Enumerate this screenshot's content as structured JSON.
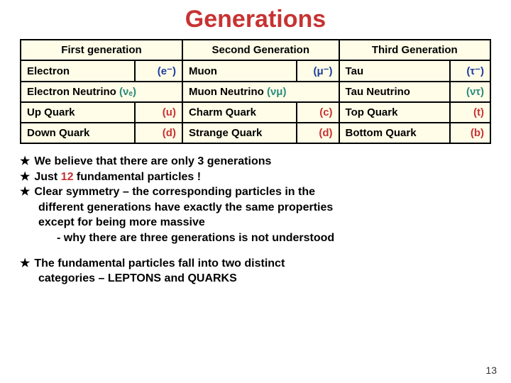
{
  "title": "Generations",
  "page_number": "13",
  "colors": {
    "title": "#c83232",
    "table_bg": "#fffde8",
    "border": "#000000",
    "red_symbol": "#c83232",
    "blue_symbol": "#1c3c9c",
    "teal_symbol": "#2a8a7a",
    "text": "#000000"
  },
  "table": {
    "headers": [
      "First generation",
      "Second Generation",
      "Third Generation"
    ],
    "rows": [
      {
        "c1": {
          "name": "Electron",
          "sym": "(e⁻)",
          "cls": "blue"
        },
        "c2": {
          "name": "Muon",
          "sym": "(μ⁻)",
          "cls": "blue"
        },
        "c3": {
          "name": "Tau",
          "sym": "(τ⁻)",
          "cls": "blue"
        }
      },
      {
        "c1": {
          "name": "Electron Neutrino",
          "sym": "(νₑ)",
          "cls": "teal"
        },
        "c2": {
          "name": "Muon Neutrino",
          "sym": "(νμ)",
          "cls": "teal"
        },
        "c3": {
          "name": "Tau Neutrino",
          "sym": "(ντ)",
          "cls": "teal"
        }
      },
      {
        "c1": {
          "name": "Up Quark",
          "sym": "(u)",
          "cls": "red"
        },
        "c2": {
          "name": "Charm Quark",
          "sym": "(c)",
          "cls": "red"
        },
        "c3": {
          "name": "Top Quark",
          "sym": "(t)",
          "cls": "red"
        }
      },
      {
        "c1": {
          "name": "Down Quark",
          "sym": "(d)",
          "cls": "red"
        },
        "c2": {
          "name": "Strange Quark",
          "sym": "(d)",
          "cls": "red"
        },
        "c3": {
          "name": "Bottom Quark",
          "sym": "(b)",
          "cls": "red"
        }
      }
    ]
  },
  "bullets": {
    "star": "★",
    "b1": "We believe that there are only 3 generations",
    "b2a": "Just ",
    "b2_red": "12",
    "b2b": " fundamental particles !",
    "b3": "Clear symmetry – the corresponding particles in the",
    "b3_l2": "different generations have exactly the same properties",
    "b3_l3": "except for being more massive",
    "b3_l4": "- why there are three generations is not understood",
    "b4": "The fundamental particles fall into two distinct",
    "b4_l2": "categories – LEPTONS and QUARKS"
  }
}
